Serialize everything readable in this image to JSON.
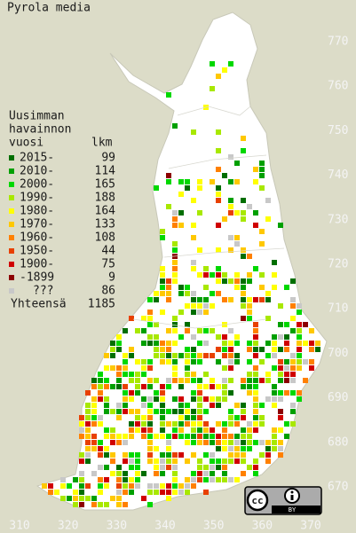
{
  "title": "Pyrola media",
  "legend": {
    "heading": [
      "Uusimman",
      "havainnon",
      "vuosi"
    ],
    "count_heading": "lkm",
    "items": [
      {
        "label": "2015-",
        "count": 99,
        "color": "#006e00"
      },
      {
        "label": "2010-",
        "count": 114,
        "color": "#00a000"
      },
      {
        "label": "2000-",
        "count": 165,
        "color": "#00d800"
      },
      {
        "label": "1990-",
        "count": 188,
        "color": "#a8e800"
      },
      {
        "label": "1980-",
        "count": 164,
        "color": "#ffff00"
      },
      {
        "label": "1970-",
        "count": 133,
        "color": "#ffc800"
      },
      {
        "label": "1960-",
        "count": 108,
        "color": "#ff8000"
      },
      {
        "label": "1950-",
        "count": 44,
        "color": "#e84000"
      },
      {
        "label": "1900-",
        "count": 75,
        "color": "#d00000"
      },
      {
        "label": "-1899",
        "count": 9,
        "color": "#8c0000"
      },
      {
        "label": "???",
        "count": 86,
        "color": "#c8c8c8"
      }
    ],
    "total_label": "Yhteensä",
    "total": 1185
  },
  "y_labels": [
    770,
    760,
    750,
    740,
    730,
    720,
    710,
    700,
    690,
    680,
    670
  ],
  "x_labels": [
    310,
    320,
    330,
    340,
    350,
    360,
    370
  ],
  "license": {
    "cc": "cc",
    "by": "BY"
  }
}
